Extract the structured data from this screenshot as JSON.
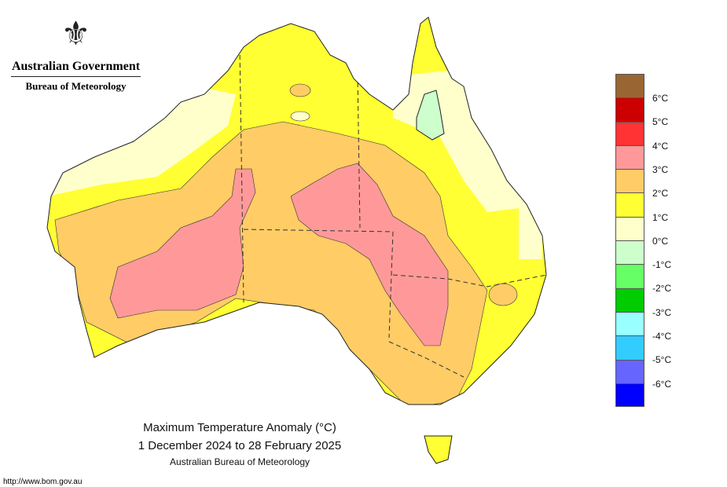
{
  "header": {
    "gov_label": "Australian Government",
    "bureau_label": "Bureau of Meteorology",
    "crest_icon": "coat-of-arms-icon"
  },
  "title": {
    "line1": "Maximum Temperature Anomaly (°C)",
    "line2": "1 December 2024 to 28 February 2025",
    "line3": "Australian Bureau of Meteorology"
  },
  "url": "http://www.bom.gov.au",
  "legend": {
    "colors": [
      "#996633",
      "#cc0000",
      "#ff3333",
      "#ff9999",
      "#ffcc66",
      "#ffff33",
      "#ffffcc",
      "#ccffcc",
      "#66ff66",
      "#00cc00",
      "#99ffff",
      "#33ccff",
      "#6666ff",
      "#0000ff"
    ],
    "labels": [
      "6°C",
      "5°C",
      "4°C",
      "3°C",
      "2°C",
      "1°C",
      "0°C",
      "-1°C",
      "-2°C",
      "-3°C",
      "-4°C",
      "-5°C",
      "-6°C"
    ]
  },
  "map_colors": {
    "land_base": "#ffff33",
    "cream": "#ffffcc",
    "orange": "#ffcc66",
    "pink": "#ff9999",
    "lightgreen": "#ccffcc"
  }
}
